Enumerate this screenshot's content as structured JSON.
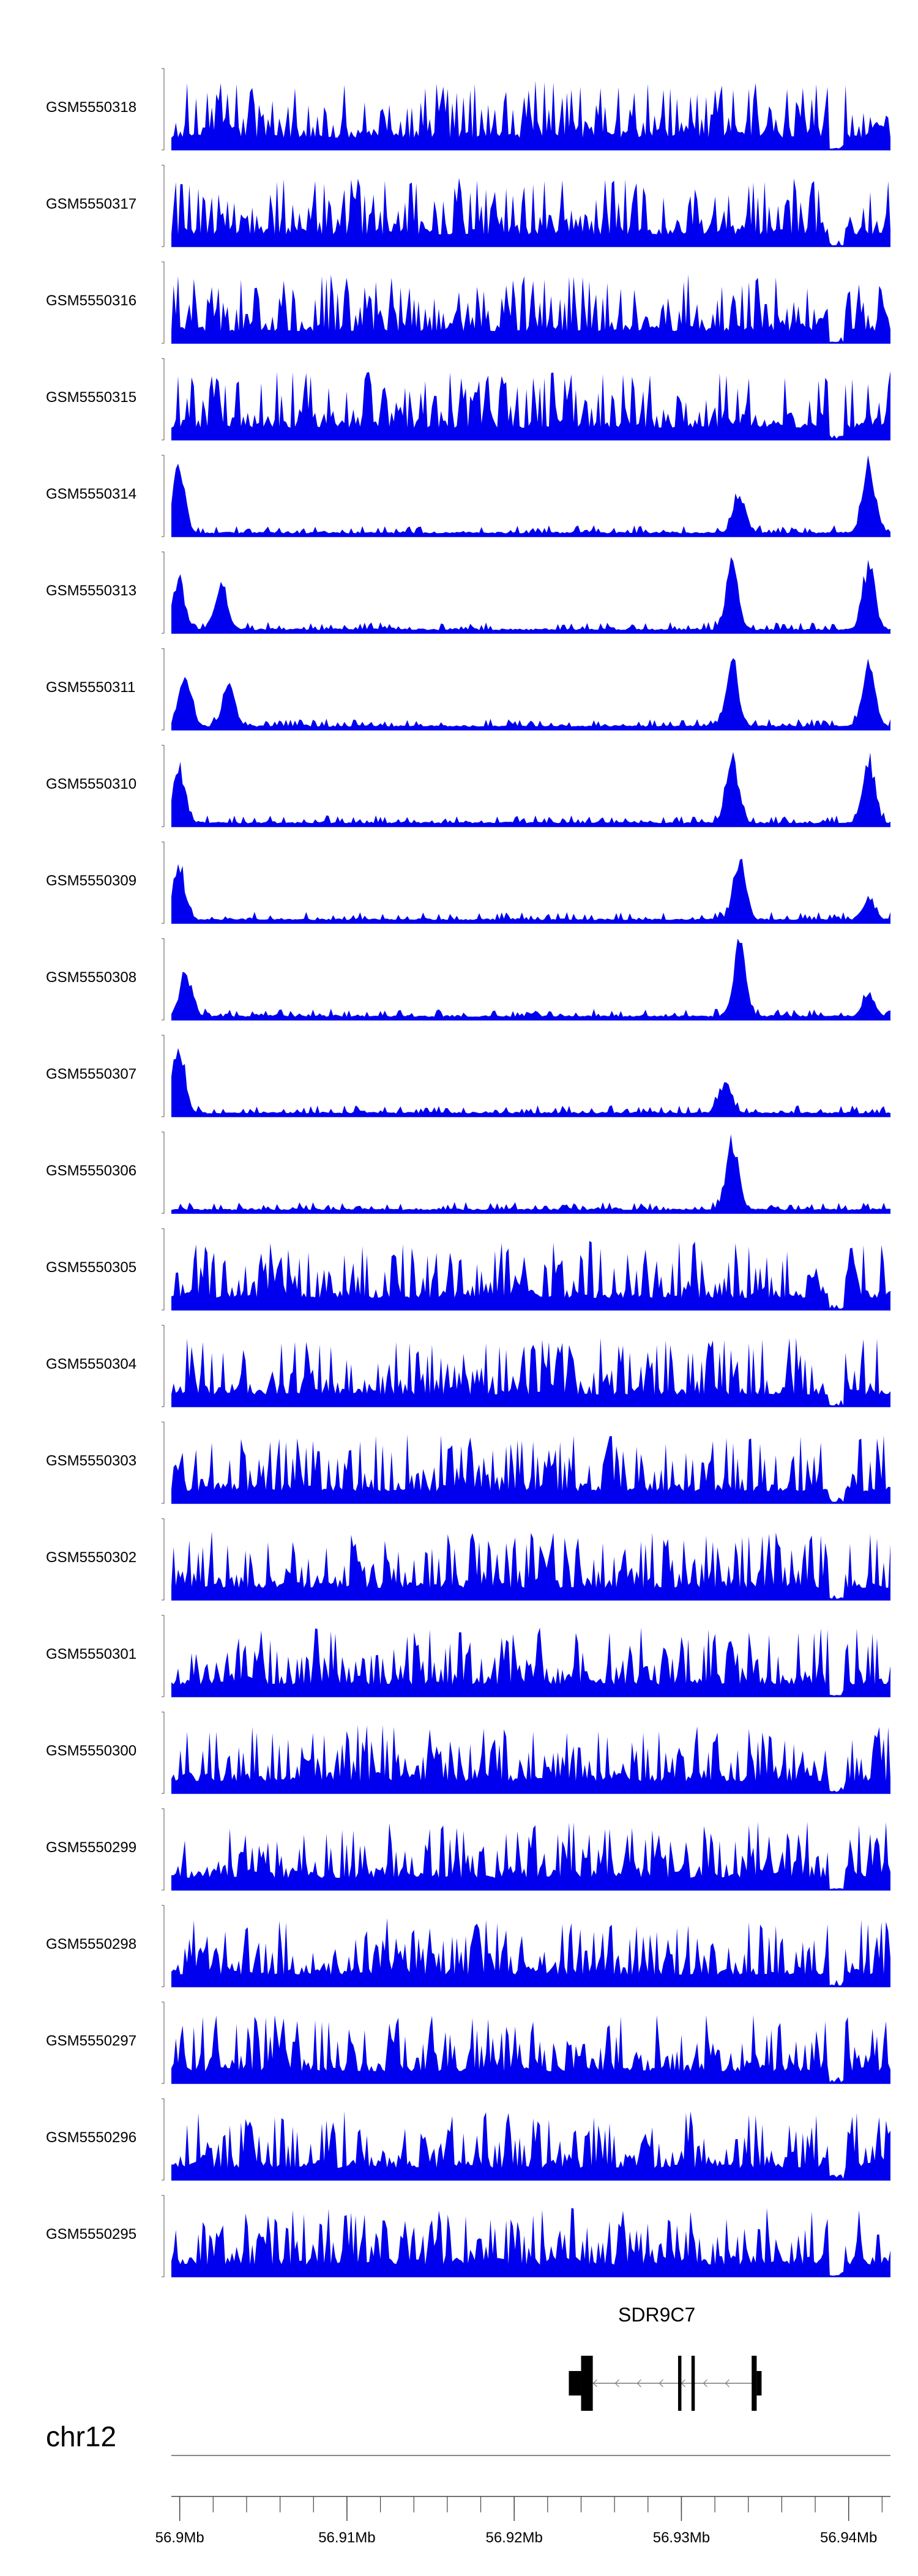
{
  "tracks": [
    {
      "name": "GSM5550318",
      "ymax": "5"
    },
    {
      "name": "GSM5550317",
      "ymax": "4"
    },
    {
      "name": "GSM5550316",
      "ymax": "4"
    },
    {
      "name": "GSM5550315",
      "ymax": "4"
    },
    {
      "name": "GSM5550314",
      "ymax": "21"
    },
    {
      "name": "GSM5550313",
      "ymax": "19"
    },
    {
      "name": "GSM5550311",
      "ymax": "21"
    },
    {
      "name": "GSM5550310",
      "ymax": "17"
    },
    {
      "name": "GSM5550309",
      "ymax": "14"
    },
    {
      "name": "GSM5550308",
      "ymax": "31"
    },
    {
      "name": "GSM5550307",
      "ymax": "12"
    },
    {
      "name": "GSM5550306",
      "ymax": "9"
    },
    {
      "name": "GSM5550305",
      "ymax": "8"
    },
    {
      "name": "GSM5550304",
      "ymax": "6"
    },
    {
      "name": "GSM5550303",
      "ymax": "7"
    },
    {
      "name": "GSM5550302",
      "ymax": "9"
    },
    {
      "name": "GSM5550301",
      "ymax": "7"
    },
    {
      "name": "GSM5550300",
      "ymax": "7"
    },
    {
      "name": "GSM5550299",
      "ymax": "7"
    },
    {
      "name": "GSM5550298",
      "ymax": "4"
    },
    {
      "name": "GSM5550297",
      "ymax": "11"
    },
    {
      "name": "GSM5550296",
      "ymax": "5"
    },
    {
      "name": "GSM5550295",
      "ymax": "8"
    }
  ],
  "ymin_label": "0",
  "gene": {
    "name": "SDR9C7",
    "strand": "-"
  },
  "chromosome": "chr12",
  "axis": {
    "tick_labels": [
      "56.9Mb",
      "56.91Mb",
      "56.92Mb",
      "56.93Mb",
      "56.94Mb"
    ],
    "tick_values": [
      56.9,
      56.91,
      56.92,
      56.93,
      56.94
    ],
    "range": [
      56.8995,
      56.9425
    ]
  },
  "colors": {
    "signal": "#0000ee",
    "axis": "#444444",
    "gene": "#000000"
  },
  "chart_data": {
    "type": "area",
    "title": "",
    "xlabel": "",
    "ylabel": "",
    "series": [
      {
        "name": "GSM5550318",
        "ylim": [
          0,
          5
        ]
      },
      {
        "name": "GSM5550317",
        "ylim": [
          0,
          4
        ]
      },
      {
        "name": "GSM5550316",
        "ylim": [
          0,
          4
        ]
      },
      {
        "name": "GSM5550315",
        "ylim": [
          0,
          4
        ]
      },
      {
        "name": "GSM5550314",
        "ylim": [
          0,
          21
        ]
      },
      {
        "name": "GSM5550313",
        "ylim": [
          0,
          19
        ]
      },
      {
        "name": "GSM5550311",
        "ylim": [
          0,
          21
        ]
      },
      {
        "name": "GSM5550310",
        "ylim": [
          0,
          17
        ]
      },
      {
        "name": "GSM5550309",
        "ylim": [
          0,
          14
        ]
      },
      {
        "name": "GSM5550308",
        "ylim": [
          0,
          31
        ]
      },
      {
        "name": "GSM5550307",
        "ylim": [
          0,
          12
        ]
      },
      {
        "name": "GSM5550306",
        "ylim": [
          0,
          9
        ]
      },
      {
        "name": "GSM5550305",
        "ylim": [
          0,
          8
        ]
      },
      {
        "name": "GSM5550304",
        "ylim": [
          0,
          6
        ]
      },
      {
        "name": "GSM5550303",
        "ylim": [
          0,
          7
        ]
      },
      {
        "name": "GSM5550302",
        "ylim": [
          0,
          9
        ]
      },
      {
        "name": "GSM5550301",
        "ylim": [
          0,
          7
        ]
      },
      {
        "name": "GSM5550300",
        "ylim": [
          0,
          7
        ]
      },
      {
        "name": "GSM5550299",
        "ylim": [
          0,
          7
        ]
      },
      {
        "name": "GSM5550298",
        "ylim": [
          0,
          4
        ]
      },
      {
        "name": "GSM5550297",
        "ylim": [
          0,
          11
        ]
      },
      {
        "name": "GSM5550296",
        "ylim": [
          0,
          5
        ]
      },
      {
        "name": "GSM5550295",
        "ylim": [
          0,
          8
        ]
      }
    ],
    "xlim": [
      56.8995,
      56.9425
    ],
    "gene_exons": [
      [
        56.924,
        56.9247
      ],
      [
        56.9298,
        56.93
      ],
      [
        56.9306,
        56.9308
      ],
      [
        56.9342,
        56.9345
      ]
    ]
  }
}
